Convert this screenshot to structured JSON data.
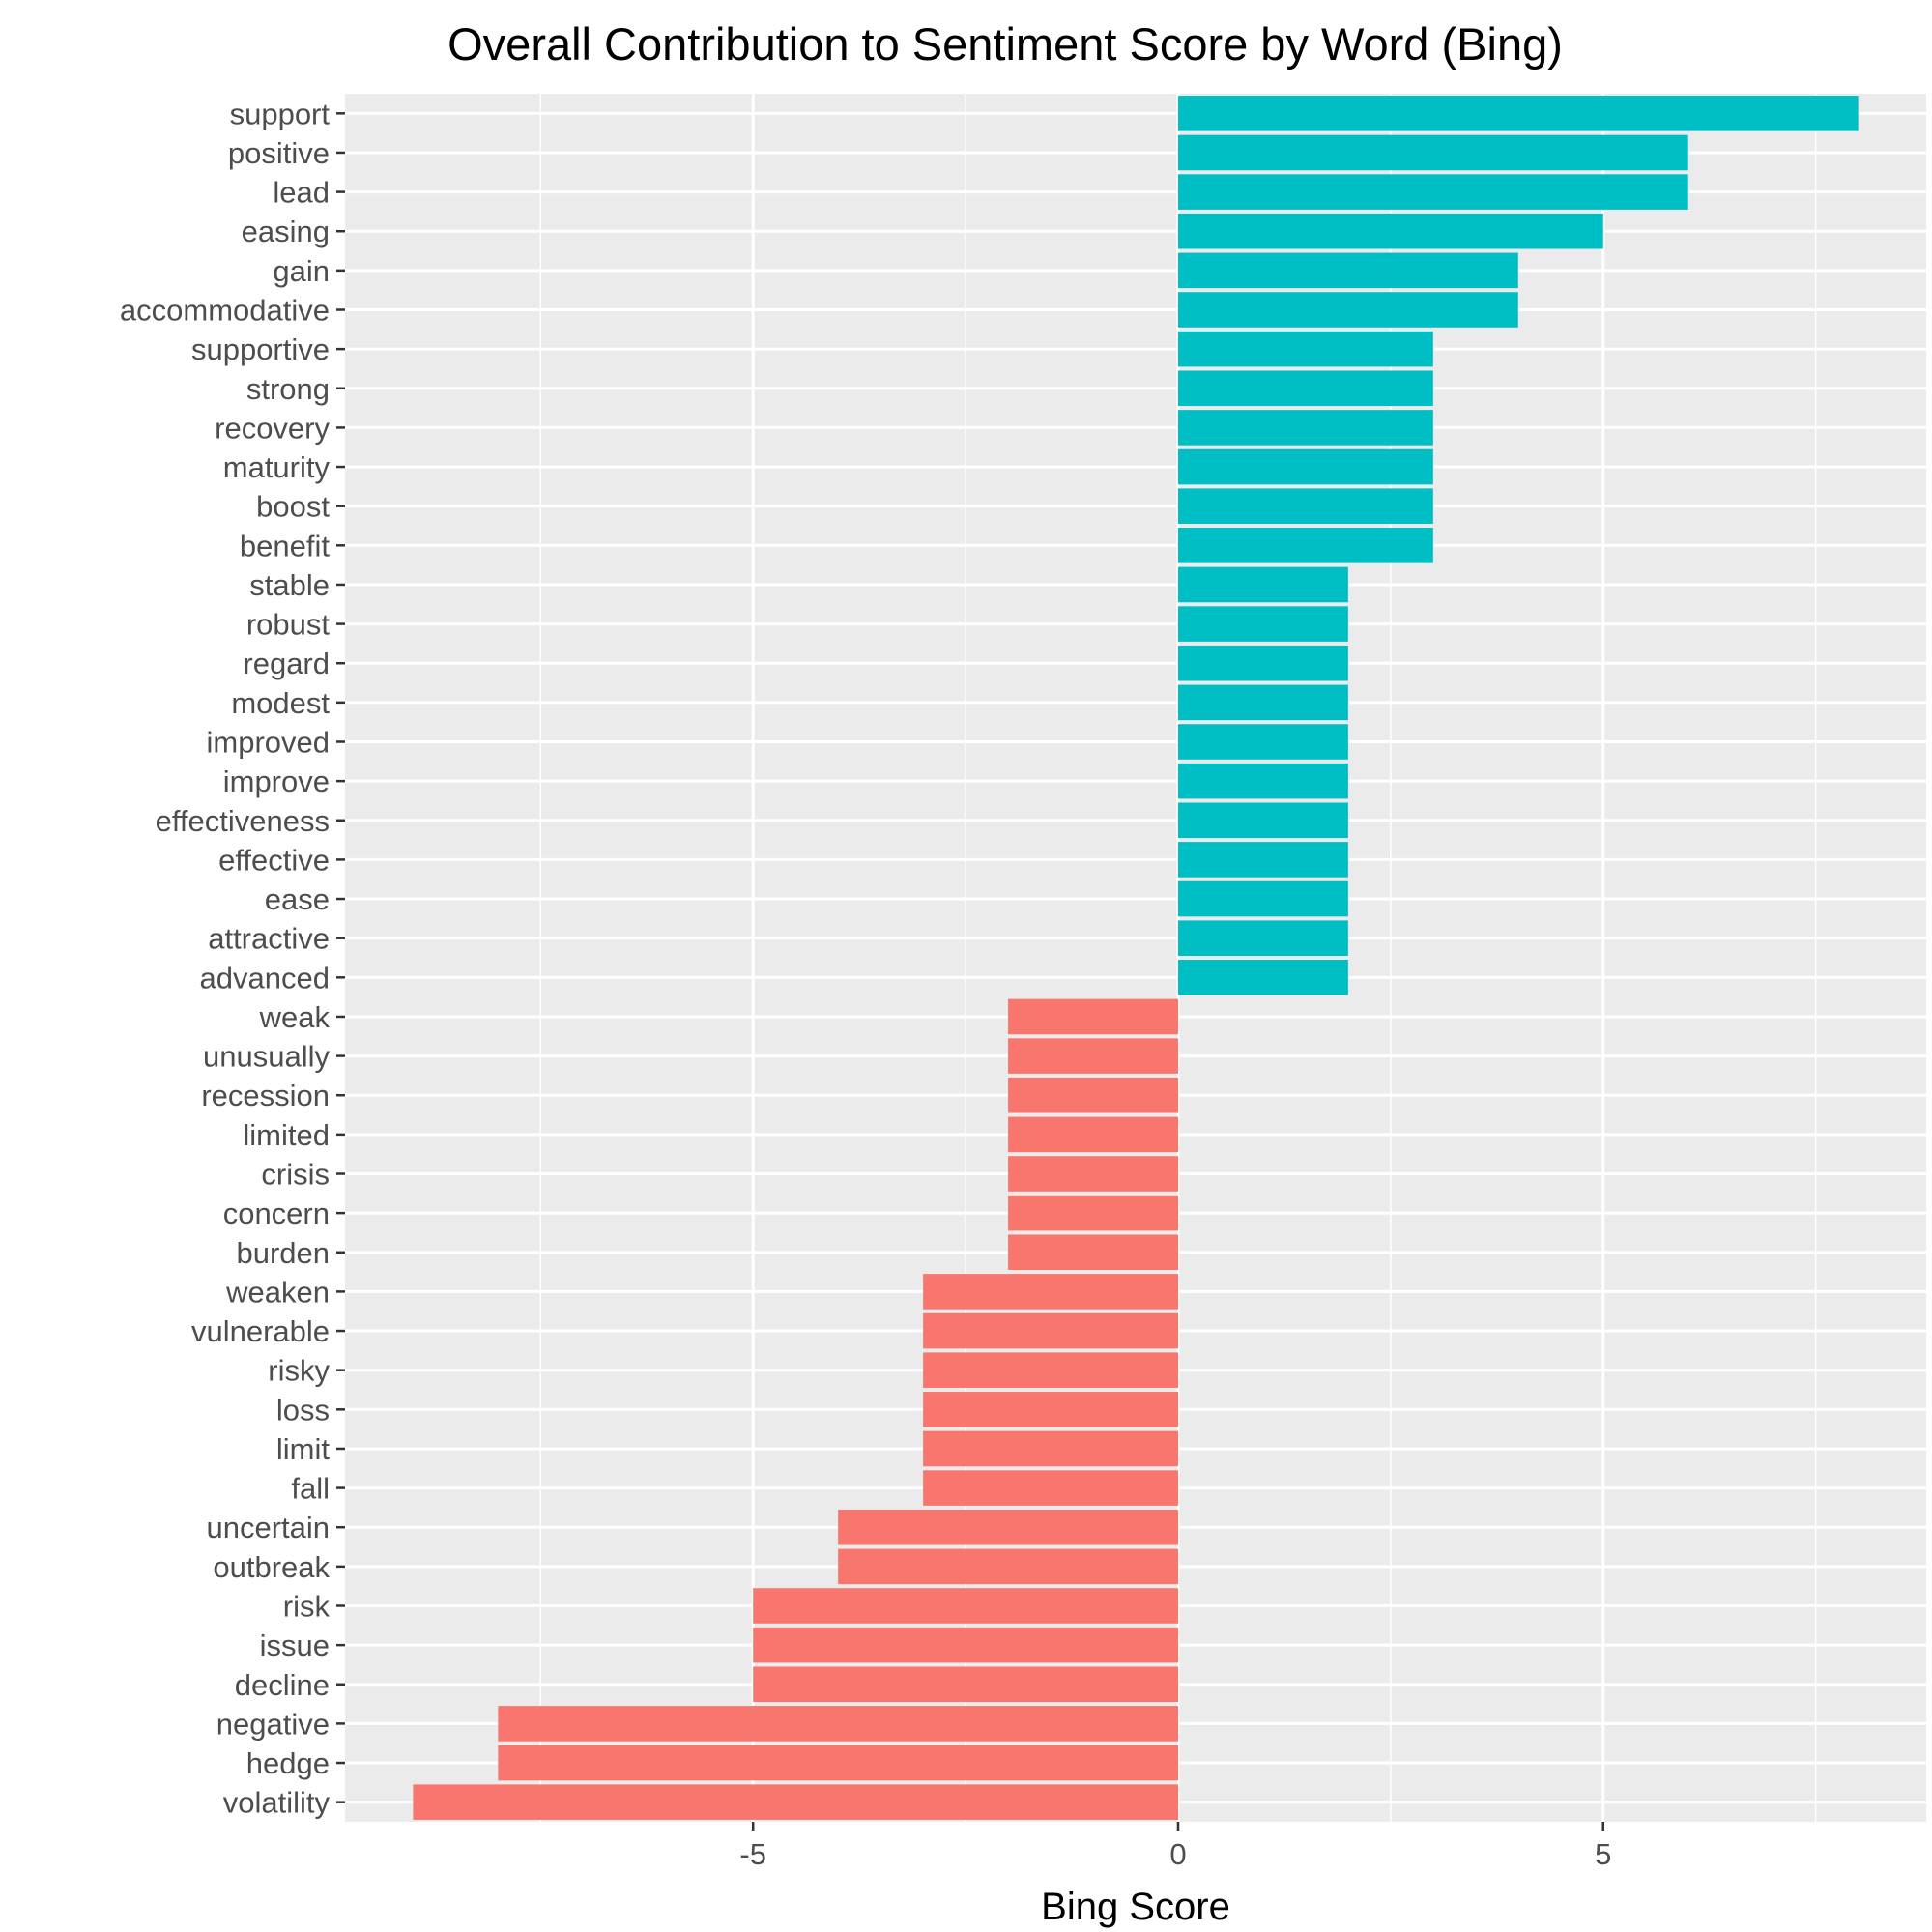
{
  "chart_data": {
    "type": "bar",
    "orientation": "horizontal",
    "title": "Overall Contribution to Sentiment Score by Word (Bing)",
    "xlabel": "Bing Score",
    "ylabel": "",
    "xlim": [
      -9.8,
      8.8
    ],
    "x_ticks": [
      -5,
      0,
      5
    ],
    "x_tick_labels": [
      "-5",
      "0",
      "5"
    ],
    "grid": true,
    "legend": "none",
    "colors": {
      "positive": "#00BFC4",
      "negative": "#F8766D",
      "panel_background": "#EBEBEB",
      "grid_line": "#FFFFFF",
      "tick_label": "#4D4D4D"
    },
    "categories": [
      "support",
      "positive",
      "lead",
      "easing",
      "gain",
      "accommodative",
      "supportive",
      "strong",
      "recovery",
      "maturity",
      "boost",
      "benefit",
      "stable",
      "robust",
      "regard",
      "modest",
      "improved",
      "improve",
      "effectiveness",
      "effective",
      "ease",
      "attractive",
      "advanced",
      "weak",
      "unusually",
      "recession",
      "limited",
      "crisis",
      "concern",
      "burden",
      "weaken",
      "vulnerable",
      "risky",
      "loss",
      "limit",
      "fall",
      "uncertain",
      "outbreak",
      "risk",
      "issue",
      "decline",
      "negative",
      "hedge",
      "volatility"
    ],
    "values": [
      8,
      6,
      6,
      5,
      4,
      4,
      3,
      3,
      3,
      3,
      3,
      3,
      2,
      2,
      2,
      2,
      2,
      2,
      2,
      2,
      2,
      2,
      2,
      -2,
      -2,
      -2,
      -2,
      -2,
      -2,
      -2,
      -3,
      -3,
      -3,
      -3,
      -3,
      -3,
      -4,
      -4,
      -5,
      -5,
      -5,
      -8,
      -8,
      -9
    ]
  }
}
